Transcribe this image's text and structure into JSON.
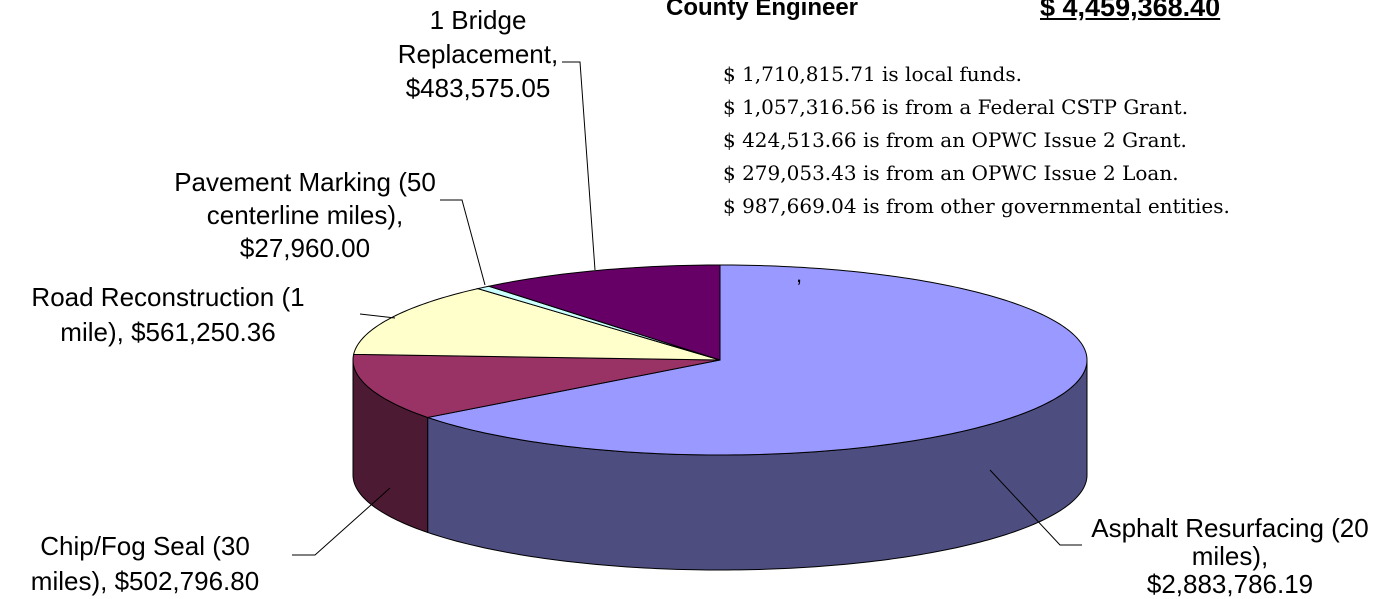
{
  "title": "County Engineer",
  "total": "$ 4,459,368.40",
  "notes": [
    "$ 1,710,815.71 is local funds.",
    "$ 1,057,316.56 is from a Federal CSTP Grant.",
    "$ 424,513.66 is from an OPWC Issue 2 Grant.",
    "$ 279,053.43 is from an OPWC Issue 2 Loan.",
    "$ 987,669.04 is from other governmental entities."
  ],
  "chart_data": {
    "type": "pie",
    "categories": [
      "Asphalt Resurfacing (20 miles),",
      "Chip/Fog Seal (30 miles),",
      "Road Reconstruction (1 mile),",
      "Pavement Marking (50 centerline miles),",
      "1 Bridge Replacement,"
    ],
    "values": [
      2883786.19,
      502796.8,
      561250.36,
      27960.0,
      483575.05
    ],
    "value_labels": [
      "$2,883,786.19",
      "$502,796.80",
      "$561,250.36",
      "$27,960.00",
      "$483,575.05"
    ],
    "colors": [
      "#9999ff",
      "#993366",
      "#ffffcc",
      "#ccffff",
      "#660066"
    ],
    "annotation": ","
  }
}
